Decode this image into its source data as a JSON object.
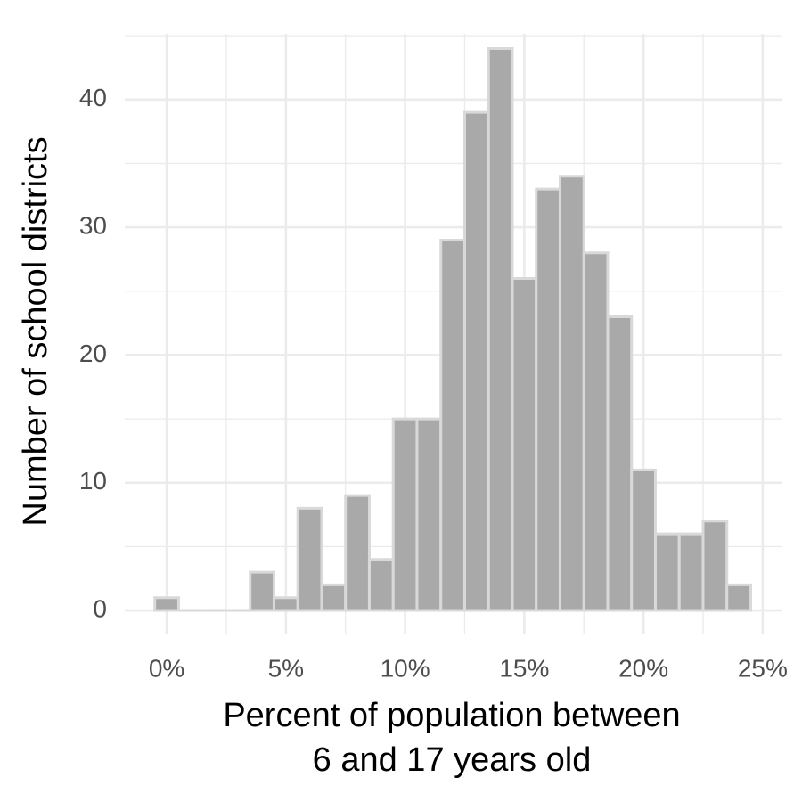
{
  "chart_data": {
    "type": "histogram",
    "xlabel": [
      "Percent of population between",
      "6 and 17 years old"
    ],
    "ylabel": "Number of school districts",
    "bins": [
      -0.5,
      0.5,
      1.5,
      2.5,
      3.5,
      4.5,
      5.5,
      6.5,
      7.5,
      8.5,
      9.5,
      10.5,
      11.5,
      12.5,
      13.5,
      14.5,
      15.5,
      16.5,
      17.5,
      18.5,
      19.5,
      20.5,
      21.5,
      22.5,
      23.5,
      24.5
    ],
    "counts": [
      1,
      0,
      0,
      0,
      3,
      1,
      8,
      2,
      9,
      4,
      15,
      15,
      29,
      39,
      44,
      26,
      33,
      34,
      28,
      23,
      11,
      6,
      6,
      7,
      2
    ],
    "color": "#a9a9a9",
    "edgecolor": "#d9d9d9",
    "xlim": [
      -1.76,
      25.79
    ],
    "ylim": [
      -1.88,
      45.15
    ],
    "xticks": [
      {
        "value": 0,
        "label": "0%"
      },
      {
        "value": 5,
        "label": "5%"
      },
      {
        "value": 10,
        "label": "10%"
      },
      {
        "value": 15,
        "label": "15%"
      },
      {
        "value": 20,
        "label": "20%"
      },
      {
        "value": 25,
        "label": "25%"
      }
    ],
    "yticks": [
      0,
      10,
      20,
      30,
      40
    ],
    "xminor": [
      2.5,
      7.5,
      12.5,
      17.5,
      22.5
    ],
    "yminor": [
      5,
      15,
      25,
      35,
      45
    ],
    "grid": true
  }
}
